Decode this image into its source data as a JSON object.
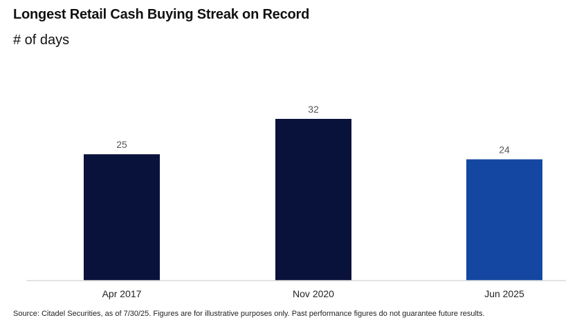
{
  "header": {
    "title": "Longest Retail Cash Buying Streak on Record",
    "subtitle": "# of days"
  },
  "footer": {
    "source": "Source: Citadel Securities, as of 7/30/25. Figures are for illustrative purposes only. Past performance figures do not guarantee future results."
  },
  "chart_data": {
    "type": "bar",
    "categories": [
      "Apr 2017",
      "Nov 2020",
      "Jun 2025"
    ],
    "values": [
      25,
      32,
      24
    ],
    "data_labels": [
      "25",
      "32",
      "24"
    ],
    "title": "Longest Retail Cash Buying Streak on Record",
    "subtitle": "# of days",
    "ylim": [
      0,
      32
    ],
    "grid": false,
    "colors": [
      "#09123a",
      "#09123a",
      "#1347a1"
    ],
    "axis_color": "#d9d9d9",
    "label_color": "#555555"
  }
}
